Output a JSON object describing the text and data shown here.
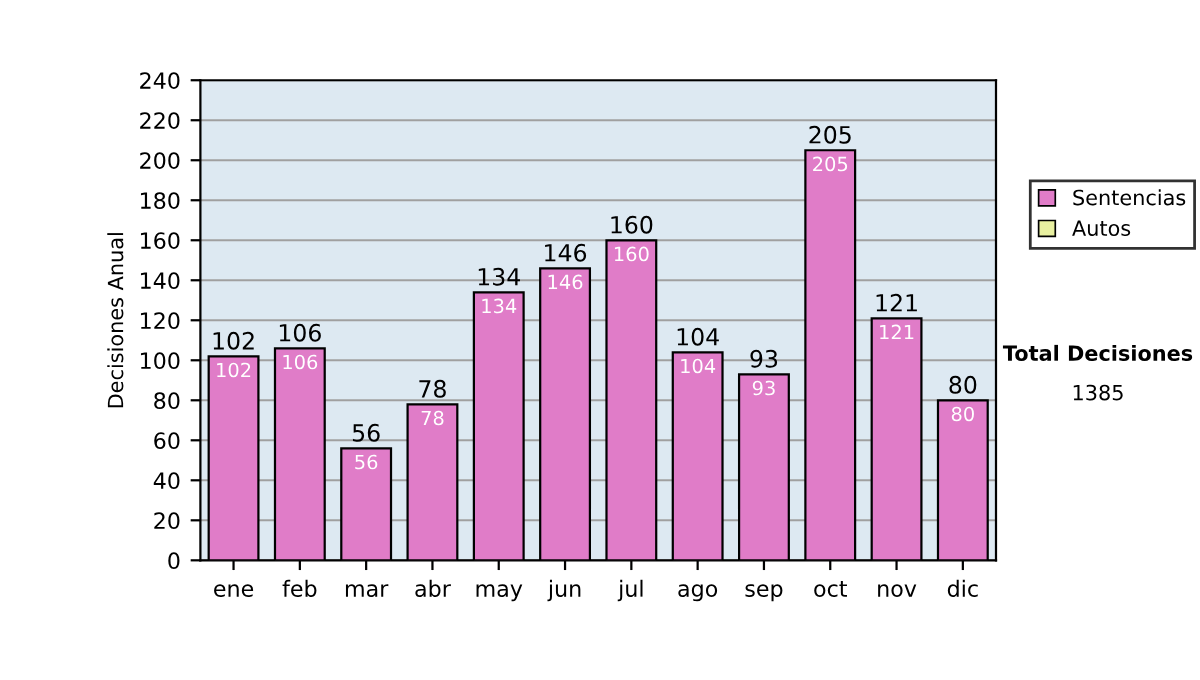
{
  "chart_data": {
    "type": "bar",
    "ylabel": "Decisiones Anual",
    "categories": [
      "ene",
      "feb",
      "mar",
      "abr",
      "may",
      "jun",
      "jul",
      "ago",
      "sep",
      "oct",
      "nov",
      "dic"
    ],
    "stacked": true,
    "series": [
      {
        "name": "Sentencias",
        "color": "#e07cc8",
        "values": [
          102,
          106,
          56,
          78,
          134,
          146,
          160,
          104,
          93,
          205,
          121,
          80
        ],
        "value_labels": [
          "102",
          "106",
          "56",
          "78",
          "134",
          "146",
          "160",
          "104",
          "93",
          "205",
          "121",
          "80"
        ]
      },
      {
        "name": "Autos",
        "color": "#e8f0a0",
        "values": [
          null,
          null,
          null,
          null,
          null,
          null,
          null,
          null,
          null,
          null,
          null,
          null
        ]
      }
    ],
    "totals": [
      "102",
      "106",
      "56",
      "78",
      "134",
      "146",
      "160",
      "104",
      "93",
      "205",
      "121",
      "80"
    ],
    "ylim": [
      0,
      240
    ],
    "yticks": [
      0,
      20,
      40,
      60,
      80,
      100,
      120,
      140,
      160,
      180,
      200,
      220,
      240
    ],
    "grid": "y",
    "legend": "right",
    "annotations": [
      "Total Decisiones",
      "1385"
    ]
  }
}
